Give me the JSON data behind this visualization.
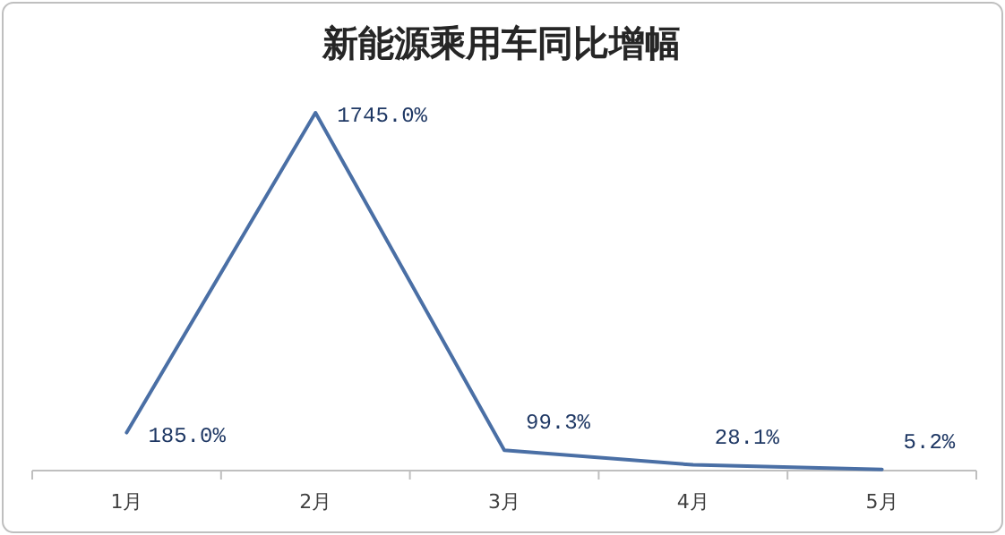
{
  "chart_data": {
    "type": "line",
    "title": "新能源乘用车同比增幅",
    "categories": [
      "1月",
      "2月",
      "3月",
      "4月",
      "5月"
    ],
    "series": [
      {
        "color": "#4a6fa5",
        "values": [
          185.0,
          1745.0,
          99.3,
          28.1,
          5.2
        ],
        "value_labels": [
          "185.0%",
          "1745.0%",
          "99.3%",
          "28.1%",
          "5.2%"
        ]
      }
    ]
  }
}
